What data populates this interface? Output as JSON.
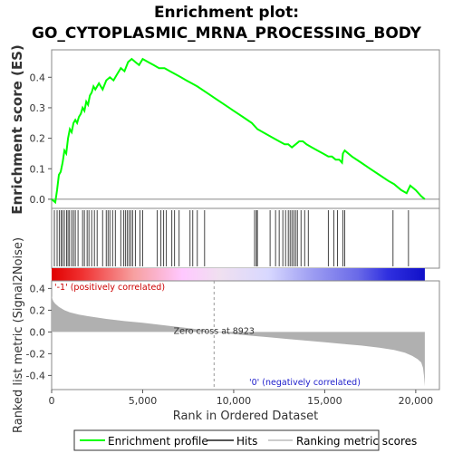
{
  "chart_data": {
    "type": "line",
    "title_line1": "Enrichment plot:",
    "title_line2": "GO_CYTOPLASMIC_MRNA_PROCESSING_BODY",
    "es_panel": {
      "ylabel": "Enrichment score (ES)",
      "ylim": [
        -0.03,
        0.49
      ],
      "yticks": [
        "0.0",
        "0.1",
        "0.2",
        "0.3",
        "0.4"
      ],
      "ytick_values": [
        0.0,
        0.1,
        0.2,
        0.3,
        0.4
      ],
      "series_name": "Enrichment profile",
      "color": "#00ff00",
      "x": [
        0,
        200,
        300,
        400,
        500,
        600,
        700,
        800,
        900,
        1000,
        1100,
        1200,
        1300,
        1400,
        1500,
        1600,
        1700,
        1800,
        1900,
        2000,
        2100,
        2200,
        2300,
        2400,
        2600,
        2800,
        3000,
        3200,
        3400,
        3600,
        3800,
        4000,
        4200,
        4400,
        4600,
        4800,
        5000,
        5300,
        5600,
        5900,
        6200,
        6500,
        6800,
        7100,
        7400,
        7700,
        8000,
        8500,
        9000,
        9500,
        10000,
        10500,
        11000,
        11300,
        11600,
        11900,
        12200,
        12500,
        12800,
        13000,
        13200,
        13400,
        13600,
        13800,
        14000,
        14300,
        14600,
        14900,
        15200,
        15400,
        15600,
        15800,
        15950,
        16000,
        16100,
        16500,
        17000,
        17500,
        18000,
        18500,
        18800,
        19200,
        19500,
        19700,
        20000,
        20300,
        20500
      ],
      "y": [
        0.0,
        -0.01,
        0.03,
        0.08,
        0.09,
        0.12,
        0.16,
        0.15,
        0.2,
        0.23,
        0.22,
        0.25,
        0.26,
        0.25,
        0.27,
        0.28,
        0.3,
        0.29,
        0.32,
        0.31,
        0.34,
        0.35,
        0.37,
        0.36,
        0.38,
        0.36,
        0.39,
        0.4,
        0.39,
        0.41,
        0.43,
        0.42,
        0.45,
        0.46,
        0.45,
        0.44,
        0.46,
        0.45,
        0.44,
        0.43,
        0.43,
        0.42,
        0.41,
        0.4,
        0.39,
        0.38,
        0.37,
        0.35,
        0.33,
        0.31,
        0.29,
        0.27,
        0.25,
        0.23,
        0.22,
        0.21,
        0.2,
        0.19,
        0.18,
        0.18,
        0.17,
        0.18,
        0.19,
        0.19,
        0.18,
        0.17,
        0.16,
        0.15,
        0.14,
        0.14,
        0.13,
        0.13,
        0.12,
        0.15,
        0.16,
        0.14,
        0.12,
        0.1,
        0.08,
        0.06,
        0.05,
        0.03,
        0.02,
        0.045,
        0.03,
        0.01,
        0.0
      ]
    },
    "hits": [
      150,
      300,
      420,
      520,
      600,
      700,
      820,
      900,
      980,
      1100,
      1200,
      1300,
      1450,
      1700,
      1800,
      1950,
      2050,
      2200,
      2350,
      2500,
      2800,
      3000,
      3100,
      3200,
      3350,
      3500,
      3800,
      3950,
      4050,
      4150,
      4250,
      4350,
      4450,
      4600,
      4850,
      5000,
      5800,
      6000,
      6150,
      6300,
      6600,
      6750,
      7000,
      7600,
      7750,
      8000,
      8400,
      11150,
      11250,
      11300,
      12000,
      12300,
      12500,
      12700,
      12850,
      13000,
      13100,
      13200,
      13300,
      13400,
      13500,
      13700,
      13900,
      14100,
      15200,
      15500,
      15700,
      16000,
      16100,
      18750,
      19600
    ],
    "rank_panel": {
      "ylabel": "Ranked list metric (Signal2Noise)",
      "ylim": [
        -0.53,
        0.47
      ],
      "yticks": [
        "0.4",
        "0.2",
        "0.0",
        "-0.2",
        "-0.4"
      ],
      "ytick_values": [
        0.4,
        0.2,
        0.0,
        -0.2,
        -0.4
      ],
      "x": [
        0,
        50,
        100,
        200,
        400,
        700,
        1000,
        1500,
        2000,
        3000,
        4000,
        5000,
        6000,
        7000,
        8000,
        8923,
        10000,
        11000,
        12000,
        13000,
        14000,
        15000,
        16000,
        17000,
        18000,
        18800,
        19400,
        19800,
        20100,
        20300,
        20400,
        20450,
        20500
      ],
      "values": [
        0.33,
        0.3,
        0.28,
        0.26,
        0.23,
        0.2,
        0.18,
        0.16,
        0.145,
        0.12,
        0.1,
        0.085,
        0.065,
        0.045,
        0.025,
        0.0,
        -0.02,
        -0.035,
        -0.05,
        -0.065,
        -0.08,
        -0.095,
        -0.11,
        -0.125,
        -0.145,
        -0.165,
        -0.19,
        -0.22,
        -0.25,
        -0.28,
        -0.33,
        -0.4,
        -0.5
      ],
      "zero_cross_label": "Zero cross at 8923",
      "zero_cross_rank": 8923,
      "pos_label": "'-1' (positively correlated)",
      "neg_label": "'0' (negatively correlated)"
    },
    "xaxis": {
      "label": "Rank in Ordered Dataset",
      "xlim": [
        0,
        21300
      ],
      "ticks": [
        "0",
        "5,000",
        "10,000",
        "15,000",
        "20,000"
      ],
      "tick_values": [
        0,
        5000,
        10000,
        15000,
        20000
      ],
      "total": 20500
    },
    "legend": {
      "items": [
        {
          "label": "Enrichment profile",
          "color": "#00ff00"
        },
        {
          "label": "Hits",
          "color": "#555555"
        },
        {
          "label": "Ranking metric scores",
          "color": "#cccccc"
        }
      ]
    }
  }
}
